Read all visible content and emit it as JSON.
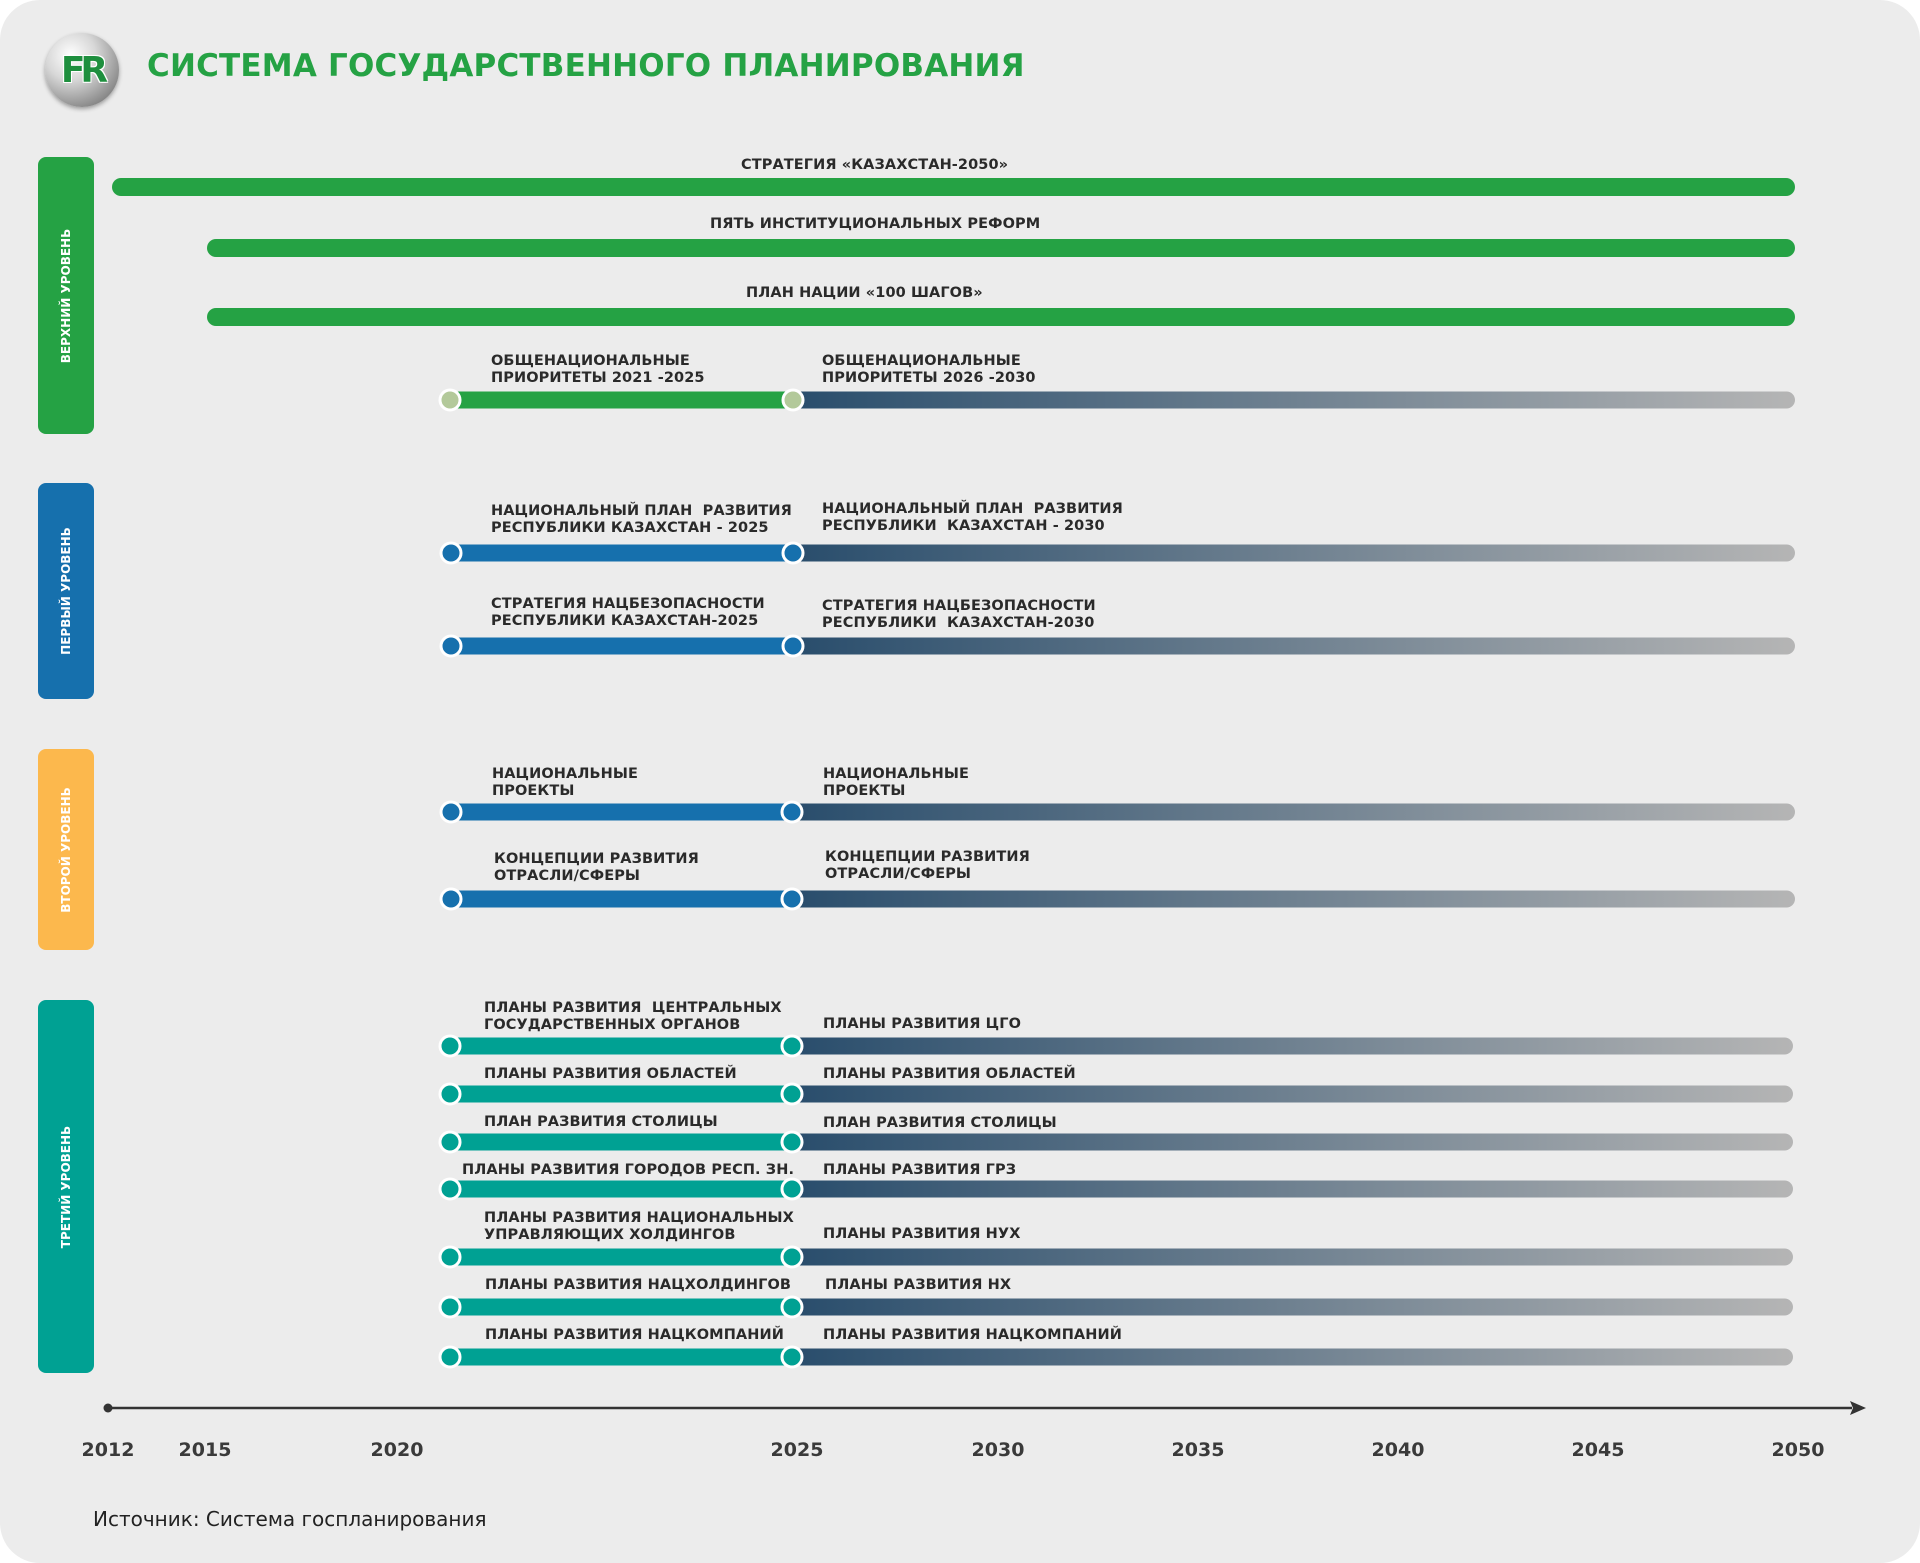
{
  "header": {
    "title": "СИСТЕМА ГОСУДАРСТВЕННОГО ПЛАНИРОВАНИЯ",
    "logo_text": "FR"
  },
  "colors": {
    "green": "#25a244",
    "blue": "#1670ad",
    "orange": "#fcb84d",
    "teal": "#00a193",
    "future_start": "#294d6c",
    "future_end": "#b5b5b5",
    "priority_dot": "#b3c99a"
  },
  "levels": [
    {
      "label": "ВЕРХНИЙ УРОВЕНЬ",
      "color": "#25a244"
    },
    {
      "label": "ПЕРВЫЙ УРОВЕНЬ",
      "color": "#1670ad"
    },
    {
      "label": "ВТОРОЙ УРОВЕНЬ",
      "color": "#fcb84d"
    },
    {
      "label": "ТРЕТИЙ УРОВЕНЬ",
      "color": "#00a193"
    }
  ],
  "upper_bars": [
    {
      "label": "СТРАТЕГИЯ «КАЗАХСТАН-2050»",
      "start": 2012,
      "end": 2050
    },
    {
      "label": "ПЯТЬ ИНСТИТУЦИОНАЛЬНЫХ РЕФОРМ",
      "start": 2015,
      "end": 2050
    },
    {
      "label": "ПЛАН НАЦИИ «100 ШАГОВ»",
      "start": 2015,
      "end": 2050
    }
  ],
  "split_bars": [
    {
      "left_label": "ОБЩЕНАЦИОНАЛЬНЫЕ\nПРИОРИТЕТЫ 2021 -2025",
      "right_label": "ОБЩЕНАЦИОНАЛЬНЫЕ\nПРИОРИТЕТЫ 2026 -2030"
    },
    {
      "left_label": "НАЦИОНАЛЬНЫЙ ПЛАН  РАЗВИТИЯ\nРЕСПУБЛИКИ КАЗАХСТАН - 2025",
      "right_label": "НАЦИОНАЛЬНЫЙ ПЛАН  РАЗВИТИЯ\nРЕСПУБЛИКИ  КАЗАХСТАН - 2030"
    },
    {
      "left_label": "СТРАТЕГИЯ НАЦБЕЗОПАСНОСТИ\nРЕСПУБЛИКИ КАЗАХСТАН-2025",
      "right_label": "СТРАТЕГИЯ НАЦБЕЗОПАСНОСТИ\nРЕСПУБЛИКИ  КАЗАХСТАН-2030"
    },
    {
      "left_label": "НАЦИОНАЛЬНЫЕ\nПРОЕКТЫ",
      "right_label": "НАЦИОНАЛЬНЫЕ\nПРОЕКТЫ"
    },
    {
      "left_label": "КОНЦЕПЦИИ РАЗВИТИЯ\nОТРАСЛИ/СФЕРЫ",
      "right_label": "КОНЦЕПЦИИ РАЗВИТИЯ\nОТРАСЛИ/СФЕРЫ"
    },
    {
      "left_label": "ПЛАНЫ РАЗВИТИЯ  ЦЕНТРАЛЬНЫХ\nГОСУДАРСТВЕННЫХ ОРГАНОВ",
      "right_label": "ПЛАНЫ РАЗВИТИЯ ЦГО"
    },
    {
      "left_label": "ПЛАНЫ РАЗВИТИЯ ОБЛАСТЕЙ",
      "right_label": "ПЛАНЫ РАЗВИТИЯ ОБЛАСТЕЙ"
    },
    {
      "left_label": "ПЛАН РАЗВИТИЯ СТОЛИЦЫ",
      "right_label": "ПЛАН РАЗВИТИЯ СТОЛИЦЫ"
    },
    {
      "left_label": "ПЛАНЫ РАЗВИТИЯ ГОРОДОВ РЕСП. ЗН.",
      "right_label": "ПЛАНЫ РАЗВИТИЯ ГРЗ"
    },
    {
      "left_label": "ПЛАНЫ РАЗВИТИЯ НАЦИОНАЛЬНЫХ\nУПРАВЛЯЮЩИХ ХОЛДИНГОВ",
      "right_label": "ПЛАНЫ РАЗВИТИЯ НУХ"
    },
    {
      "left_label": "ПЛАНЫ РАЗВИТИЯ НАЦХОЛДИНГОВ",
      "right_label": "ПЛАНЫ РАЗВИТИЯ НХ"
    },
    {
      "left_label": "ПЛАНЫ РАЗВИТИЯ НАЦКОМПАНИЙ",
      "right_label": "ПЛАНЫ РАЗВИТИЯ НАЦКОМПАНИЙ"
    }
  ],
  "axis": {
    "ticks": [
      "2012",
      "2015",
      "2020",
      "2025",
      "2030",
      "2035",
      "2040",
      "2045",
      "2050"
    ]
  },
  "footer": {
    "source": "Источник: Система госпланирования"
  }
}
